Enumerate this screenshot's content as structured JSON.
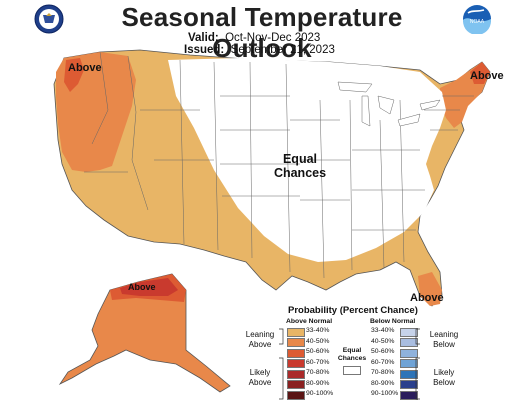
{
  "header": {
    "title": "Seasonal Temperature Outlook",
    "valid_label": "Valid:",
    "valid_value": "Oct-Nov-Dec 2023",
    "issued_label": "Issued:",
    "issued_value": "September 21, 2023"
  },
  "logos": {
    "left": "commerce-seal",
    "right_text": "NOAA"
  },
  "map_labels": {
    "above_nw": "Above",
    "above_ne": "Above",
    "equal_line1": "Equal",
    "equal_line2": "Chances",
    "above_ak": "Above",
    "above_fl": "Above"
  },
  "legend": {
    "title": "Probability (Percent Chance)",
    "above_header": "Above Normal",
    "below_header": "Below Normal",
    "equal_line1": "Equal",
    "equal_line2": "Chances",
    "leaning_above": [
      "Leaning",
      "Above"
    ],
    "likely_above": [
      "Likely",
      "Above"
    ],
    "leaning_below": [
      "Leaning",
      "Below"
    ],
    "likely_below": [
      "Likely",
      "Below"
    ],
    "above_rows": [
      {
        "label": "33-40%",
        "color": "#e8b566"
      },
      {
        "label": "40-50%",
        "color": "#e8884a"
      },
      {
        "label": "50-60%",
        "color": "#dd5b33"
      },
      {
        "label": "60-70%",
        "color": "#c93a2e"
      },
      {
        "label": "70-80%",
        "color": "#aa2a2a"
      },
      {
        "label": "80-90%",
        "color": "#8a2020"
      },
      {
        "label": "90-100%",
        "color": "#5a1414"
      }
    ],
    "below_rows": [
      {
        "label": "33-40%",
        "color": "#c7d3ea"
      },
      {
        "label": "40-50%",
        "color": "#a9bde0"
      },
      {
        "label": "50-60%",
        "color": "#8fb2dc"
      },
      {
        "label": "60-70%",
        "color": "#6fa3d6"
      },
      {
        "label": "70-80%",
        "color": "#2d74b8"
      },
      {
        "label": "80-90%",
        "color": "#2a3f8c"
      },
      {
        "label": "90-100%",
        "color": "#2a1d5c"
      }
    ]
  }
}
